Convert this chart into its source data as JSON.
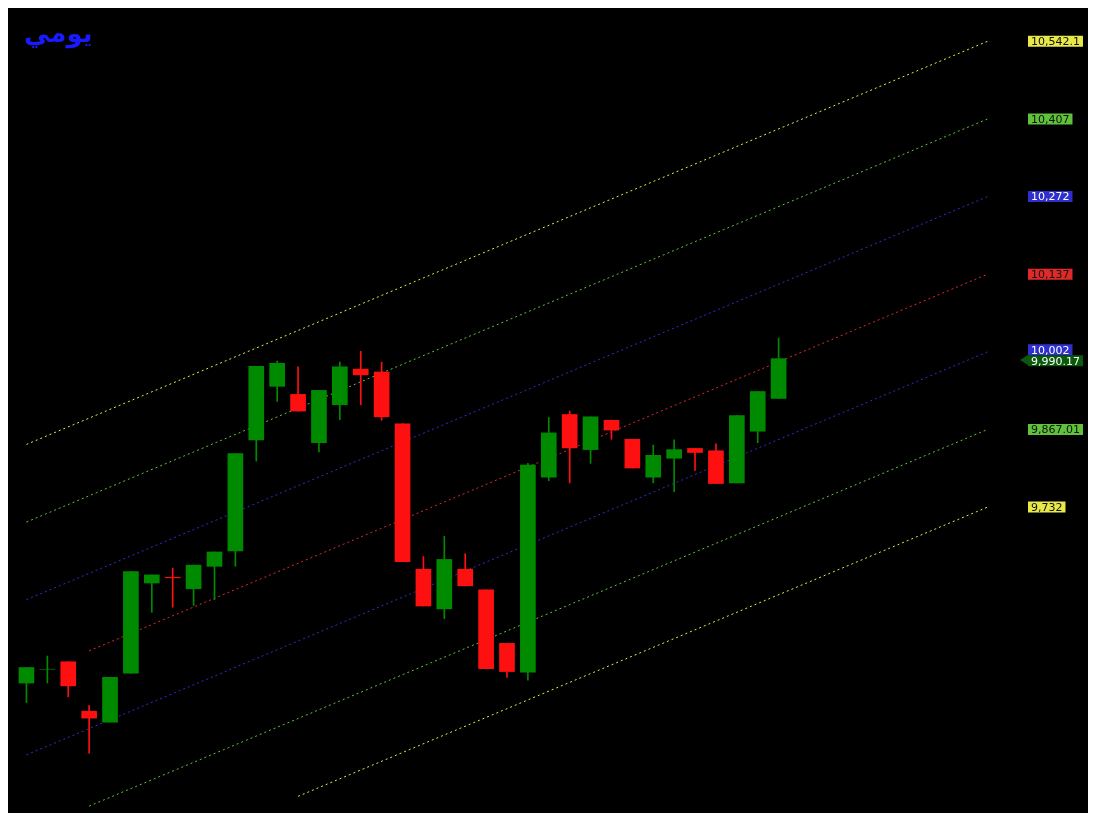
{
  "chart_data": {
    "type": "candlestick",
    "title": "يومي",
    "categories": [
      null,
      null,
      null,
      null,
      null,
      null,
      null,
      null,
      null,
      null,
      null,
      null,
      null,
      null,
      null,
      null,
      null,
      null,
      null,
      null,
      null,
      null,
      null,
      null,
      null,
      null,
      null,
      null,
      null,
      null,
      null,
      null,
      null,
      null,
      null,
      null,
      null,
      null,
      null,
      null,
      null,
      null,
      null,
      null,
      null,
      null,
      null
    ],
    "ohlc": [
      [
        9426,
        9453,
        9392,
        9453
      ],
      [
        9450,
        9473,
        9426,
        9450
      ],
      [
        9463,
        9463,
        9402,
        9421
      ],
      [
        9377,
        9387,
        9304,
        9365
      ],
      [
        9358,
        9436,
        9358,
        9436
      ],
      [
        9443,
        9620,
        9443,
        9620
      ],
      [
        9600,
        9614,
        9549,
        9614
      ],
      [
        9610,
        9626,
        9558,
        9609
      ],
      [
        9590,
        9631,
        9561,
        9631
      ],
      [
        9629,
        9654,
        9571,
        9654
      ],
      [
        9656,
        9825,
        9629,
        9825
      ],
      [
        9849,
        9977,
        9812,
        9977
      ],
      [
        9942,
        9986,
        9916,
        9982
      ],
      [
        9928,
        9976,
        9899,
        9899
      ],
      [
        9844,
        9935,
        9828,
        9935
      ],
      [
        9910,
        9984,
        9884,
        9976
      ],
      [
        9972,
        10003,
        9910,
        9962
      ],
      [
        9967,
        9984,
        9883,
        9889
      ],
      [
        9877,
        9877,
        9637,
        9637
      ],
      [
        9624,
        9646,
        9560,
        9560
      ],
      [
        9555,
        9681,
        9538,
        9641
      ],
      [
        9624,
        9651,
        9595,
        9595
      ],
      [
        9588,
        9588,
        9451,
        9451
      ],
      [
        9495,
        9495,
        9436,
        9446
      ],
      [
        9445,
        9808,
        9431,
        9805
      ],
      [
        9784,
        9888,
        9778,
        9861
      ],
      [
        9893,
        9899,
        9774,
        9835
      ],
      [
        9832,
        9889,
        9808,
        9889
      ],
      [
        9883,
        9883,
        9850,
        9866
      ],
      [
        9850,
        9850,
        9800,
        9800
      ],
      [
        9784,
        9840,
        9774,
        9822
      ],
      [
        9817,
        9849,
        9759,
        9832
      ],
      [
        9834,
        9834,
        9796,
        9827
      ],
      [
        9830,
        9842,
        9773,
        9773
      ],
      [
        9774,
        9891,
        9774,
        9891
      ],
      [
        9864,
        9933,
        9844,
        9933
      ],
      [
        9921,
        10026,
        9921,
        9990.17
      ],
      null,
      null,
      null,
      null,
      null,
      null,
      null,
      null,
      null,
      null
    ],
    "series": [
      {
        "type": "line",
        "color": "#e8e84a",
        "values": [
          9841,
          null,
          null,
          null,
          null,
          null,
          null,
          null,
          null,
          null,
          null,
          null,
          null,
          null,
          null,
          null,
          null,
          null,
          null,
          null,
          null,
          null,
          null,
          null,
          null,
          null,
          null,
          null,
          null,
          null,
          null,
          null,
          null,
          null,
          null,
          null,
          null,
          null,
          null,
          null,
          null,
          null,
          null,
          null,
          null,
          null,
          10542.1
        ]
      },
      {
        "type": "line",
        "color": "#5fc23a",
        "values": [
          9706,
          null,
          null,
          null,
          null,
          null,
          null,
          null,
          null,
          null,
          null,
          null,
          null,
          null,
          null,
          null,
          null,
          null,
          null,
          null,
          null,
          null,
          null,
          null,
          null,
          null,
          null,
          null,
          null,
          null,
          null,
          null,
          null,
          null,
          null,
          null,
          null,
          null,
          null,
          null,
          null,
          null,
          null,
          null,
          null,
          null,
          10407
        ]
      },
      {
        "type": "line",
        "color": "#2f2fd0",
        "values": [
          9571,
          null,
          null,
          null,
          null,
          null,
          null,
          null,
          null,
          null,
          null,
          null,
          null,
          null,
          null,
          null,
          null,
          null,
          null,
          null,
          null,
          null,
          null,
          null,
          null,
          null,
          null,
          null,
          null,
          null,
          null,
          null,
          null,
          null,
          null,
          null,
          null,
          null,
          null,
          null,
          null,
          null,
          null,
          null,
          null,
          null,
          10272
        ]
      },
      {
        "type": "line",
        "color": "#e02a2a",
        "values": [
          null,
          null,
          null,
          9482,
          null,
          null,
          null,
          null,
          null,
          null,
          null,
          null,
          null,
          null,
          null,
          null,
          null,
          null,
          null,
          null,
          null,
          null,
          null,
          null,
          null,
          null,
          null,
          null,
          null,
          null,
          null,
          null,
          null,
          null,
          null,
          null,
          null,
          null,
          null,
          null,
          null,
          null,
          null,
          null,
          null,
          null,
          10137
        ]
      },
      {
        "type": "line",
        "color": "#2f2fd0",
        "values": [
          9301,
          null,
          null,
          null,
          null,
          null,
          null,
          null,
          null,
          null,
          null,
          null,
          null,
          null,
          null,
          null,
          null,
          null,
          null,
          null,
          null,
          null,
          null,
          null,
          null,
          null,
          null,
          null,
          null,
          null,
          null,
          null,
          null,
          null,
          null,
          null,
          null,
          null,
          null,
          null,
          null,
          null,
          null,
          null,
          null,
          null,
          10002
        ]
      },
      {
        "type": "line",
        "color": "#5fc23a",
        "values": [
          null,
          null,
          null,
          9212,
          null,
          null,
          null,
          null,
          null,
          null,
          null,
          null,
          null,
          null,
          null,
          null,
          null,
          null,
          null,
          null,
          null,
          null,
          null,
          null,
          null,
          null,
          null,
          null,
          null,
          null,
          null,
          null,
          null,
          null,
          null,
          null,
          null,
          null,
          null,
          null,
          null,
          null,
          null,
          null,
          null,
          null,
          9867.01
        ]
      },
      {
        "type": "line",
        "color": "#e8e84a",
        "values": [
          null,
          null,
          null,
          null,
          null,
          null,
          null,
          null,
          null,
          null,
          null,
          null,
          null,
          9229,
          null,
          null,
          null,
          null,
          null,
          null,
          null,
          null,
          null,
          null,
          null,
          null,
          null,
          null,
          null,
          null,
          null,
          null,
          null,
          null,
          null,
          null,
          null,
          null,
          null,
          null,
          null,
          null,
          null,
          null,
          null,
          null,
          9732
        ]
      }
    ],
    "line_style": "dotted",
    "ylim": [
      9200,
      10600
    ],
    "yticks": [
      {
        "value": 10542.1,
        "label": "10,542.1"
      },
      {
        "value": 10407,
        "label": "10,407"
      },
      {
        "value": 10272,
        "label": "10,272"
      },
      {
        "value": 10137,
        "label": "10,137"
      },
      {
        "value": 10002,
        "label": "10,002"
      },
      {
        "value": 9990.17,
        "label": "9,990.17"
      },
      {
        "value": 9867.01,
        "label": "9,867.01"
      },
      {
        "value": 9732,
        "label": "9,732"
      }
    ],
    "tick_labels": "y",
    "grid": false,
    "legend": false
  }
}
